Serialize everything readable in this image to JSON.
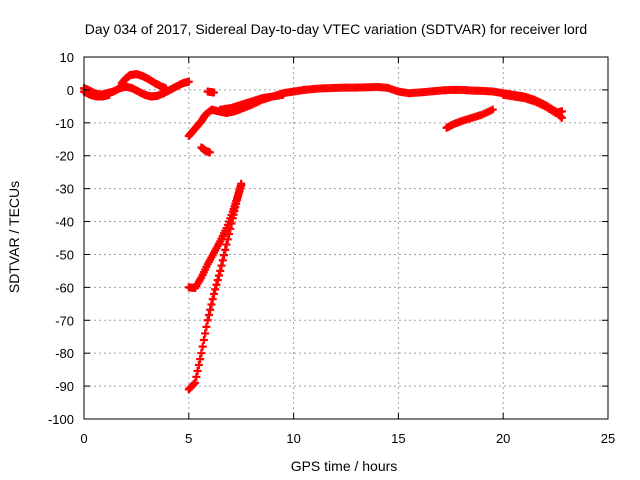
{
  "chart_data": {
    "type": "scatter",
    "title": "Day 034 of 2017, Sidereal Day-to-day VTEC variation (SDTVAR) for receiver lord",
    "xlabel": "GPS time / hours",
    "ylabel": "SDTVAR / TECUs",
    "xlim": [
      0,
      25
    ],
    "ylim": [
      -100,
      10
    ],
    "xticks": [
      "0",
      "5",
      "10",
      "15",
      "20",
      "25"
    ],
    "yticks": [
      "10",
      "0",
      "-10",
      "-20",
      "-30",
      "-40",
      "-50",
      "-60",
      "-70",
      "-80",
      "-90",
      "-100"
    ],
    "grid": true,
    "marker": "+",
    "series": [
      {
        "color": "#ff0000",
        "segments": [
          [
            [
              0.0,
              0.5
            ],
            [
              0.2,
              0.0
            ],
            [
              0.5,
              -1.0
            ],
            [
              0.8,
              -1.5
            ],
            [
              1.1,
              -1.0
            ],
            [
              1.4,
              -0.5
            ],
            [
              1.7,
              0.5
            ],
            [
              2.0,
              1.0
            ],
            [
              2.3,
              0.5
            ],
            [
              2.6,
              -0.5
            ],
            [
              2.9,
              -1.5
            ],
            [
              3.2,
              -2.0
            ],
            [
              3.5,
              -1.8
            ],
            [
              3.8,
              -1.0
            ],
            [
              4.1,
              0.0
            ],
            [
              4.4,
              1.0
            ],
            [
              4.7,
              2.0
            ],
            [
              5.0,
              2.5
            ]
          ],
          [
            [
              1.8,
              2.0
            ],
            [
              2.0,
              3.5
            ],
            [
              2.2,
              4.5
            ],
            [
              2.5,
              4.8
            ],
            [
              2.8,
              4.2
            ],
            [
              3.1,
              3.2
            ],
            [
              3.4,
              2.0
            ],
            [
              3.7,
              1.0
            ],
            [
              3.9,
              0.5
            ]
          ],
          [
            [
              0.0,
              -0.5
            ],
            [
              0.3,
              -1.5
            ],
            [
              0.6,
              -2.0
            ],
            [
              0.9,
              -2.0
            ],
            [
              1.2,
              -1.5
            ]
          ],
          [
            [
              5.0,
              -14.0
            ],
            [
              5.2,
              -12.5
            ],
            [
              5.4,
              -11.0
            ],
            [
              5.6,
              -9.5
            ],
            [
              5.8,
              -7.5
            ],
            [
              6.1,
              -6.0
            ],
            [
              6.4,
              -6.5
            ],
            [
              6.8,
              -7.0
            ],
            [
              7.2,
              -6.5
            ],
            [
              7.6,
              -5.5
            ],
            [
              8.0,
              -4.5
            ],
            [
              8.5,
              -3.0
            ],
            [
              9.0,
              -2.0
            ],
            [
              9.5,
              -1.0
            ],
            [
              10.0,
              -0.5
            ],
            [
              10.5,
              0.0
            ]
          ],
          [
            [
              5.6,
              -17.5
            ],
            [
              5.8,
              -18.5
            ],
            [
              6.0,
              -19.0
            ]
          ],
          [
            [
              5.9,
              -0.5
            ],
            [
              6.2,
              -0.8
            ]
          ],
          [
            [
              6.5,
              -6.0
            ],
            [
              7.0,
              -5.5
            ],
            [
              7.5,
              -4.5
            ],
            [
              8.0,
              -3.5
            ],
            [
              8.5,
              -2.5
            ],
            [
              9.0,
              -2.0
            ],
            [
              9.5,
              -1.5
            ]
          ],
          [
            [
              10.5,
              0.0
            ],
            [
              11.0,
              0.3
            ],
            [
              11.5,
              0.5
            ],
            [
              12.0,
              0.6
            ],
            [
              12.5,
              0.7
            ],
            [
              13.0,
              0.7
            ],
            [
              13.5,
              0.8
            ],
            [
              14.0,
              0.9
            ],
            [
              14.5,
              0.6
            ],
            [
              15.0,
              -0.5
            ],
            [
              15.5,
              -1.0
            ],
            [
              16.0,
              -0.8
            ],
            [
              16.5,
              -0.5
            ],
            [
              17.0,
              -0.2
            ],
            [
              17.5,
              0.0
            ],
            [
              18.0,
              0.0
            ],
            [
              18.5,
              -0.2
            ],
            [
              19.0,
              -0.3
            ],
            [
              19.5,
              -0.5
            ],
            [
              20.0,
              -1.0
            ],
            [
              20.5,
              -1.5
            ],
            [
              21.0,
              -2.0
            ],
            [
              21.5,
              -3.0
            ],
            [
              22.0,
              -4.5
            ],
            [
              22.5,
              -6.5
            ],
            [
              22.8,
              -8.5
            ]
          ],
          [
            [
              20.0,
              -1.5
            ],
            [
              20.5,
              -2.0
            ],
            [
              21.0,
              -2.5
            ],
            [
              21.5,
              -3.5
            ],
            [
              22.0,
              -5.0
            ],
            [
              22.5,
              -7.0
            ],
            [
              22.8,
              -6.5
            ]
          ],
          [
            [
              17.3,
              -11.5
            ],
            [
              17.6,
              -10.5
            ],
            [
              18.0,
              -9.5
            ],
            [
              18.5,
              -8.5
            ],
            [
              19.0,
              -7.5
            ],
            [
              19.5,
              -6.0
            ]
          ],
          [
            [
              5.0,
              -60.0
            ],
            [
              5.3,
              -60.2
            ],
            [
              5.6,
              -57.0
            ],
            [
              5.9,
              -53.0
            ],
            [
              6.2,
              -49.5
            ],
            [
              6.5,
              -46.0
            ],
            [
              6.8,
              -42.0
            ],
            [
              7.1,
              -37.0
            ],
            [
              7.3,
              -33.0
            ],
            [
              7.5,
              -28.5
            ]
          ],
          [
            [
              5.0,
              -91.0
            ],
            [
              5.3,
              -89.0
            ],
            [
              5.6,
              -80.0
            ],
            [
              5.9,
              -70.0
            ],
            [
              6.2,
              -62.0
            ],
            [
              6.5,
              -55.0
            ],
            [
              6.8,
              -47.0
            ],
            [
              7.1,
              -39.0
            ],
            [
              7.3,
              -33.5
            ],
            [
              7.5,
              -29.0
            ]
          ]
        ]
      }
    ]
  }
}
